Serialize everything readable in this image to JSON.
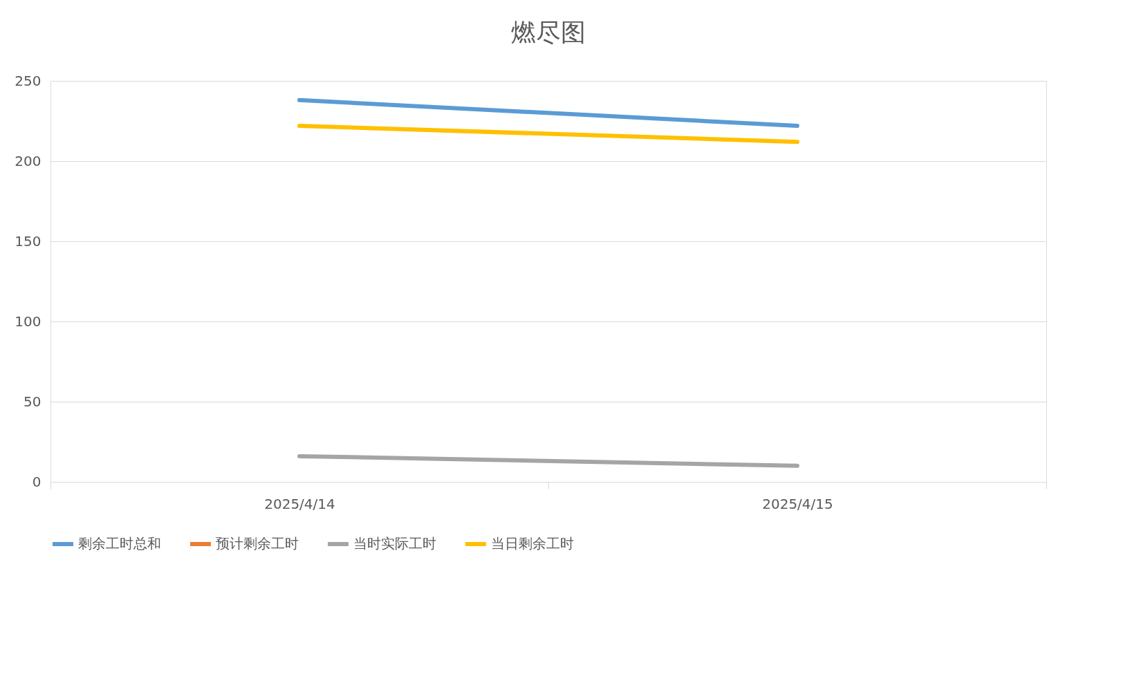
{
  "chart_data": {
    "type": "line",
    "title": "燃尽图",
    "categories": [
      "2025/4/14",
      "2025/4/15"
    ],
    "series": [
      {
        "name": "剩余工时总和",
        "color": "#5b9bd5",
        "values": [
          238,
          222
        ]
      },
      {
        "name": "预计剩余工时",
        "color": "#ed7d31",
        "values": [
          null,
          null
        ]
      },
      {
        "name": "当时实际工时",
        "color": "#a5a5a5",
        "values": [
          16,
          10
        ]
      },
      {
        "name": "当日剩余工时",
        "color": "#ffc000",
        "values": [
          222,
          212
        ]
      }
    ],
    "ylim": [
      0,
      250
    ],
    "yticks": [
      0,
      50,
      100,
      150,
      200,
      250
    ],
    "grid": "y",
    "legend": "bottom",
    "marker": "none",
    "line_style": "solid"
  }
}
